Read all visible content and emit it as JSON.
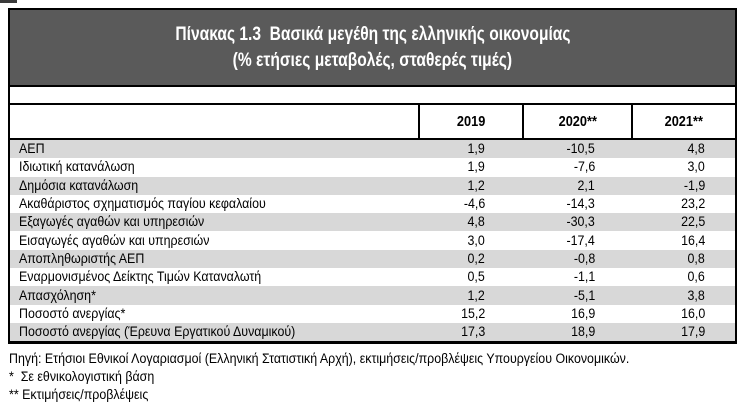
{
  "title": {
    "line1": "Πίνακας 1.3  Βασικά μεγέθη της ελληνικής οικονομίας",
    "line2": "(% ετήσιες μεταβολές, σταθερές τιμές)"
  },
  "table": {
    "header": {
      "label_column": "",
      "year_columns": [
        "2019",
        "2020**",
        "2021**"
      ]
    },
    "rows": [
      {
        "label": "ΑΕΠ",
        "values": [
          "1,9",
          "-10,5",
          "4,8"
        ]
      },
      {
        "label": "Ιδιωτική κατανάλωση",
        "values": [
          "1,9",
          "-7,6",
          "3,0"
        ]
      },
      {
        "label": "Δημόσια κατανάλωση",
        "values": [
          "1,2",
          "2,1",
          "-1,9"
        ]
      },
      {
        "label": "Ακαθάριστος σχηματισμός παγίου κεφαλαίου",
        "values": [
          "-4,6",
          "-14,3",
          "23,2"
        ]
      },
      {
        "label": "Εξαγωγές αγαθών και υπηρεσιών",
        "values": [
          "4,8",
          "-30,3",
          "22,5"
        ]
      },
      {
        "label": "Εισαγωγές αγαθών και υπηρεσιών",
        "values": [
          "3,0",
          "-17,4",
          "16,4"
        ]
      },
      {
        "label": "Αποπληθωριστής ΑΕΠ",
        "values": [
          "0,2",
          "-0,8",
          "0,8"
        ]
      },
      {
        "label": "Εναρμονισμένος Δείκτης Τιμών Καταναλωτή",
        "values": [
          "0,5",
          "-1,1",
          "0,6"
        ]
      },
      {
        "label": "Απασχόληση*",
        "values": [
          "1,2",
          "-5,1",
          "3,8"
        ]
      },
      {
        "label": "Ποσοστό ανεργίας*",
        "values": [
          "15,2",
          "16,9",
          "16,0"
        ]
      },
      {
        "label": "Ποσοστό ανεργίας (Έρευνα Εργατικού Δυναμικού)",
        "values": [
          "17,3",
          "18,9",
          "17,9"
        ]
      }
    ]
  },
  "footnotes": [
    "Πηγή: Ετήσιοι Εθνικοί Λογαριασμοί (Ελληνική Στατιστική Αρχή), εκτιμήσεις/προβλέψεις Υπουργείου Οικονομικών.",
    "*  Σε εθνικολογιστική βάση",
    "** Εκτιμήσεις/προβλέψεις"
  ],
  "colors": {
    "title_bg": "#5a5a5a",
    "title_text": "#ffffff",
    "row_shaded_bg": "#d8d8d8",
    "border": "#000000",
    "text": "#000000"
  }
}
